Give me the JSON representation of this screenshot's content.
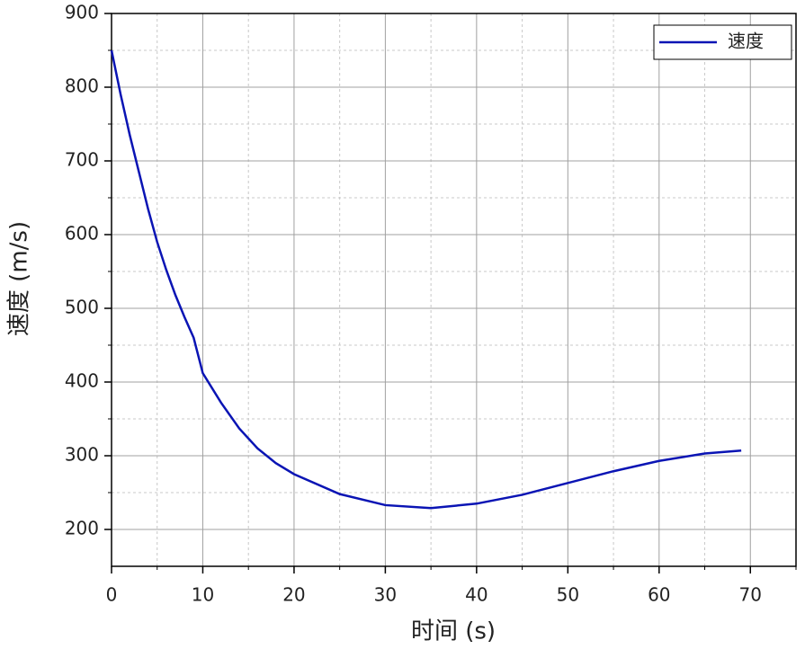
{
  "chart_data": {
    "type": "line",
    "x_label": "时间 (s)",
    "y_label": "速度 (m/s)",
    "x": [
      0,
      1,
      2,
      3,
      4,
      5,
      6,
      7,
      8,
      9,
      10,
      12,
      14,
      16,
      18,
      20,
      25,
      30,
      35,
      40,
      45,
      50,
      55,
      60,
      65,
      69
    ],
    "series": [
      {
        "name": "速度",
        "color": "#0a14b4",
        "values": [
          850,
          790,
          735,
          685,
          635,
          590,
          552,
          518,
          488,
          460,
          412,
          372,
          337,
          310,
          290,
          275,
          248,
          233,
          229,
          235,
          247,
          263,
          279,
          293,
          303,
          307
        ]
      }
    ],
    "xlim": [
      0,
      75
    ],
    "ylim": [
      150,
      900
    ],
    "xticks": [
      0,
      10,
      20,
      30,
      40,
      50,
      60,
      70
    ],
    "yticks": [
      200,
      300,
      400,
      500,
      600,
      700,
      800,
      900
    ],
    "xminorticks": [
      5,
      15,
      25,
      35,
      45,
      55,
      65,
      75
    ],
    "yminorticks": [
      250,
      350,
      450,
      550,
      650,
      750,
      850
    ],
    "grid": true,
    "legend": "top-right"
  }
}
